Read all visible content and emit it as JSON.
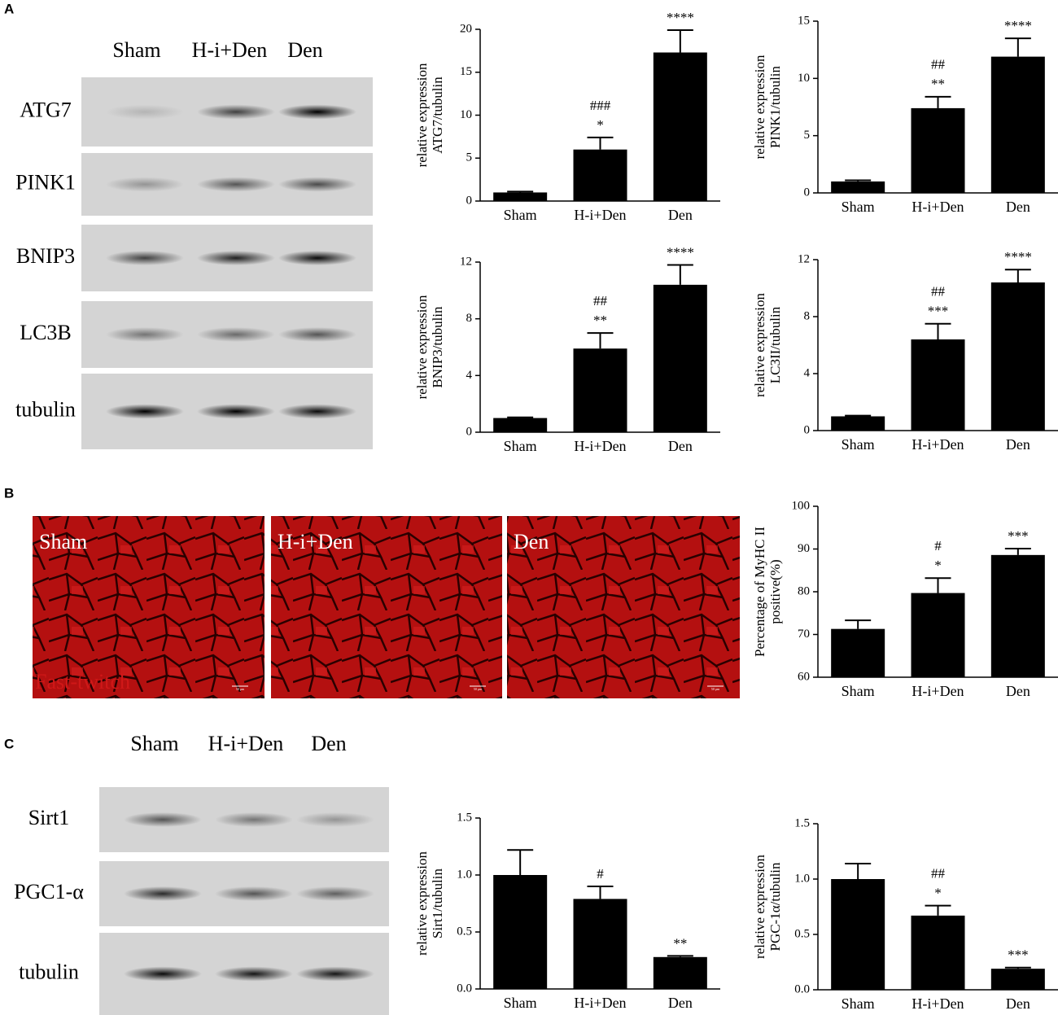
{
  "figure": {
    "panels": [
      "A",
      "B",
      "C"
    ],
    "blot_a": {
      "lanes": [
        "Sham",
        "H-i+Den",
        "Den"
      ],
      "rows": [
        "ATG7",
        "PINK1",
        "BNIP3",
        "LC3B",
        "tubulin"
      ]
    },
    "images_b": {
      "labels": [
        "Sham",
        "H-i+Den",
        "Den"
      ],
      "stain": "Fast-twitch",
      "scale_bar": "50 μm"
    },
    "blot_c": {
      "lanes": [
        "Sham",
        "H-i+Den",
        "Den"
      ],
      "rows": [
        "Sirt1",
        "PGC1-α",
        "tubulin"
      ]
    }
  },
  "chart_data": [
    {
      "type": "bar",
      "ylabel": [
        "relative expression",
        "ATG7/tubulin"
      ],
      "categories": [
        "Sham",
        "H-i+Den",
        "Den"
      ],
      "values": [
        1,
        6,
        17.3
      ],
      "errors": [
        0.1,
        1.4,
        2.6
      ],
      "annotations": [
        [],
        [
          "###",
          "*"
        ],
        [
          "****"
        ]
      ],
      "color": "#000000",
      "ylim": [
        0,
        20
      ],
      "yticks": [
        0,
        5,
        10,
        15,
        20
      ]
    },
    {
      "type": "bar",
      "ylabel": [
        "relative expression",
        "PINK1/tubulin"
      ],
      "categories": [
        "Sham",
        "H-i+Den",
        "Den"
      ],
      "values": [
        1,
        7.4,
        11.9
      ],
      "errors": [
        0.1,
        1,
        1.6
      ],
      "annotations": [
        [],
        [
          "##",
          "**"
        ],
        [
          "****"
        ]
      ],
      "color": "#000000",
      "ylim": [
        0,
        15
      ],
      "yticks": [
        0,
        5,
        10,
        15
      ]
    },
    {
      "type": "bar",
      "ylabel": [
        "relative expression",
        "BNIP3/tubulin"
      ],
      "categories": [
        "Sham",
        "H-i+Den",
        "Den"
      ],
      "values": [
        1,
        5.9,
        10.4
      ],
      "errors": [
        0.05,
        1.1,
        1.4
      ],
      "annotations": [
        [],
        [
          "##",
          "**"
        ],
        [
          "****"
        ]
      ],
      "color": "#000000",
      "ylim": [
        0,
        12
      ],
      "yticks": [
        0,
        4,
        8,
        12
      ]
    },
    {
      "type": "bar",
      "ylabel": [
        "relative expression",
        "LC3II/tubulin"
      ],
      "categories": [
        "Sham",
        "H-i+Den",
        "Den"
      ],
      "values": [
        1,
        6.4,
        10.4
      ],
      "errors": [
        0.05,
        1.1,
        0.9
      ],
      "annotations": [
        [],
        [
          "##",
          "***"
        ],
        [
          "****"
        ]
      ],
      "color": "#000000",
      "ylim": [
        0,
        12
      ],
      "yticks": [
        0,
        4,
        8,
        12
      ]
    },
    {
      "type": "bar",
      "ylabel": [
        "Percentage of MyHC II",
        "positive(%)"
      ],
      "categories": [
        "Sham",
        "H-i+Den",
        "Den"
      ],
      "values": [
        71.3,
        79.7,
        88.6
      ],
      "errors": [
        2,
        3.5,
        1.5
      ],
      "annotations": [
        [],
        [
          "#",
          "*"
        ],
        [
          "***"
        ]
      ],
      "color": "#000000",
      "ylim": [
        60,
        100
      ],
      "yticks": [
        60,
        70,
        80,
        90,
        100
      ]
    },
    {
      "type": "bar",
      "ylabel": [
        "relative expression",
        "Sirt1/tubulin"
      ],
      "categories": [
        "Sham",
        "H-i+Den",
        "Den"
      ],
      "values": [
        1,
        0.79,
        0.28
      ],
      "errors": [
        0.22,
        0.11,
        0.01
      ],
      "annotations": [
        [],
        [
          "#"
        ],
        [
          "**"
        ]
      ],
      "color": "#000000",
      "ylim": [
        0,
        1.5
      ],
      "yticks": [
        {
          "value": 0,
          "label": "0.0"
        },
        {
          "value": 0.5,
          "label": "0.5"
        },
        {
          "value": 1,
          "label": "1.0"
        },
        {
          "value": 1.5,
          "label": "1.5"
        }
      ]
    },
    {
      "type": "bar",
      "ylabel": [
        "relative expression",
        "PGC-1α/tubulin"
      ],
      "categories": [
        "Sham",
        "H-i+Den",
        "Den"
      ],
      "values": [
        1,
        0.67,
        0.19
      ],
      "errors": [
        0.14,
        0.09,
        0.01
      ],
      "annotations": [
        [],
        [
          "##",
          "*"
        ],
        [
          "***"
        ]
      ],
      "color": "#000000",
      "ylim": [
        0,
        1.5
      ],
      "yticks": [
        {
          "value": 0,
          "label": "0.0"
        },
        {
          "value": 0.5,
          "label": "0.5"
        },
        {
          "value": 1,
          "label": "1.0"
        },
        {
          "value": 1.5,
          "label": "1.5"
        }
      ]
    }
  ]
}
